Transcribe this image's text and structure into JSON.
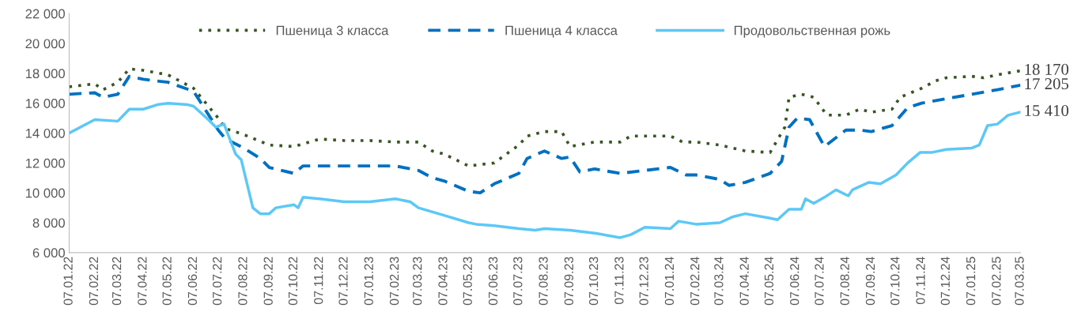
{
  "chart_data": {
    "type": "line",
    "legend": "top",
    "grid": false,
    "ylim": [
      6000,
      22000
    ],
    "yticks": [
      {
        "value": 6000,
        "label": "6 000"
      },
      {
        "value": 8000,
        "label": "8 000"
      },
      {
        "value": 10000,
        "label": "10 000"
      },
      {
        "value": 12000,
        "label": "12 000"
      },
      {
        "value": 14000,
        "label": "14 000"
      },
      {
        "value": 16000,
        "label": "16 000"
      },
      {
        "value": 18000,
        "label": "18 000"
      },
      {
        "value": 20000,
        "label": "20 000"
      },
      {
        "value": 22000,
        "label": "22 000"
      }
    ],
    "xlim": [
      "2022-01-07",
      "2025-03-07"
    ],
    "xticks": [
      {
        "value": "2022-01-07",
        "label": "07.01.22"
      },
      {
        "value": "2022-02-07",
        "label": "07.02.22"
      },
      {
        "value": "2022-03-07",
        "label": "07.03.22"
      },
      {
        "value": "2022-04-07",
        "label": "07.04.22"
      },
      {
        "value": "2022-05-07",
        "label": "07.05.22"
      },
      {
        "value": "2022-06-07",
        "label": "07.06.22"
      },
      {
        "value": "2022-07-07",
        "label": "07.07.22"
      },
      {
        "value": "2022-08-07",
        "label": "07.08.22"
      },
      {
        "value": "2022-09-07",
        "label": "07.09.22"
      },
      {
        "value": "2022-10-07",
        "label": "07.10.22"
      },
      {
        "value": "2022-11-07",
        "label": "07.11.22"
      },
      {
        "value": "2022-12-07",
        "label": "07.12.22"
      },
      {
        "value": "2023-01-07",
        "label": "07.01.23"
      },
      {
        "value": "2023-02-07",
        "label": "07.02.23"
      },
      {
        "value": "2023-03-07",
        "label": "07.03.23"
      },
      {
        "value": "2023-04-07",
        "label": "07.04.23"
      },
      {
        "value": "2023-05-07",
        "label": "07.05.23"
      },
      {
        "value": "2023-06-07",
        "label": "07.06.23"
      },
      {
        "value": "2023-07-07",
        "label": "07.07.23"
      },
      {
        "value": "2023-08-07",
        "label": "07.08.23"
      },
      {
        "value": "2023-09-07",
        "label": "07.09.23"
      },
      {
        "value": "2023-10-07",
        "label": "07.10.23"
      },
      {
        "value": "2023-11-07",
        "label": "07.11.23"
      },
      {
        "value": "2023-12-07",
        "label": "07.12.23"
      },
      {
        "value": "2024-01-07",
        "label": "07.01.24"
      },
      {
        "value": "2024-02-07",
        "label": "07.02.24"
      },
      {
        "value": "2024-03-07",
        "label": "07.03.24"
      },
      {
        "value": "2024-04-07",
        "label": "07.04.24"
      },
      {
        "value": "2024-05-07",
        "label": "07.05.24"
      },
      {
        "value": "2024-06-07",
        "label": "07.06.24"
      },
      {
        "value": "2024-07-07",
        "label": "07.07.24"
      },
      {
        "value": "2024-08-07",
        "label": "07.08.24"
      },
      {
        "value": "2024-09-07",
        "label": "07.09.24"
      },
      {
        "value": "2024-10-07",
        "label": "07.10.24"
      },
      {
        "value": "2024-11-07",
        "label": "07.11.24"
      },
      {
        "value": "2024-12-07",
        "label": "07.12.24"
      },
      {
        "value": "2025-01-07",
        "label": "07.01.25"
      },
      {
        "value": "2025-02-07",
        "label": "07.02.25"
      },
      {
        "value": "2025-03-07",
        "label": "07.03.25"
      }
    ],
    "series": [
      {
        "name": "Пшеница 3 класса",
        "color": "#375623",
        "line_style": "dotted",
        "x": [
          "2022-01-07",
          "2022-02-07",
          "2022-02-17",
          "2022-03-07",
          "2022-03-21",
          "2022-04-07",
          "2022-05-07",
          "2022-06-07",
          "2022-07-07",
          "2022-07-16",
          "2022-08-07",
          "2022-09-07",
          "2022-10-07",
          "2022-11-07",
          "2022-12-07",
          "2023-01-07",
          "2023-02-07",
          "2023-03-07",
          "2023-03-24",
          "2023-04-07",
          "2023-05-07",
          "2023-06-07",
          "2023-07-07",
          "2023-07-17",
          "2023-08-07",
          "2023-08-28",
          "2023-09-07",
          "2023-10-07",
          "2023-11-07",
          "2023-11-20",
          "2023-12-07",
          "2024-01-07",
          "2024-01-22",
          "2024-02-07",
          "2024-03-07",
          "2024-04-07",
          "2024-05-07",
          "2024-05-25",
          "2024-05-30",
          "2024-06-14",
          "2024-06-29",
          "2024-07-15",
          "2024-08-07",
          "2024-08-24",
          "2024-09-07",
          "2024-10-02",
          "2024-10-12",
          "2024-11-07",
          "2024-11-24",
          "2024-12-07",
          "2025-01-07",
          "2025-01-21",
          "2025-02-07",
          "2025-03-07"
        ],
        "values": [
          17100,
          17300,
          16900,
          17400,
          18300,
          18200,
          17900,
          17000,
          15000,
          14300,
          13900,
          13200,
          13100,
          13600,
          13500,
          13500,
          13400,
          13400,
          12800,
          12600,
          11800,
          12000,
          13200,
          13800,
          14100,
          14100,
          13100,
          13400,
          13400,
          13800,
          13800,
          13800,
          13400,
          13400,
          13200,
          12800,
          12700,
          14400,
          16400,
          16600,
          16400,
          15200,
          15200,
          15600,
          15400,
          15600,
          16400,
          17000,
          17500,
          17700,
          17800,
          17700,
          17900,
          18170
        ]
      },
      {
        "name": "Пшеница 4 класса",
        "color": "#0070c0",
        "line_style": "dashed",
        "x": [
          "2022-01-07",
          "2022-02-07",
          "2022-02-17",
          "2022-03-07",
          "2022-03-21",
          "2022-04-07",
          "2022-05-07",
          "2022-06-07",
          "2022-07-07",
          "2022-07-16",
          "2022-08-07",
          "2022-08-27",
          "2022-09-07",
          "2022-10-07",
          "2022-10-18",
          "2022-11-07",
          "2022-12-07",
          "2023-01-07",
          "2023-02-07",
          "2023-03-07",
          "2023-03-24",
          "2023-04-07",
          "2023-05-07",
          "2023-05-21",
          "2023-06-07",
          "2023-07-07",
          "2023-07-17",
          "2023-08-07",
          "2023-08-28",
          "2023-09-07",
          "2023-09-19",
          "2023-10-07",
          "2023-11-07",
          "2023-12-07",
          "2024-01-07",
          "2024-01-26",
          "2024-02-07",
          "2024-03-07",
          "2024-03-18",
          "2024-04-07",
          "2024-05-07",
          "2024-05-21",
          "2024-05-30",
          "2024-06-09",
          "2024-06-24",
          "2024-07-12",
          "2024-08-07",
          "2024-08-24",
          "2024-09-07",
          "2024-10-02",
          "2024-10-21",
          "2024-11-07",
          "2024-12-07",
          "2025-01-07",
          "2025-02-07",
          "2025-03-07"
        ],
        "values": [
          16600,
          16700,
          16400,
          16600,
          17800,
          17600,
          17400,
          16800,
          14200,
          13600,
          13000,
          12300,
          11700,
          11300,
          11800,
          11800,
          11800,
          11800,
          11800,
          11500,
          11000,
          10800,
          10100,
          10000,
          10600,
          11300,
          12300,
          12800,
          12300,
          12400,
          11400,
          11600,
          11300,
          11500,
          11700,
          11200,
          11200,
          10900,
          10500,
          10700,
          11300,
          12100,
          14400,
          15000,
          14900,
          13100,
          14200,
          14200,
          14100,
          14500,
          15700,
          16000,
          16300,
          16600,
          16900,
          17205
        ]
      },
      {
        "name": "Продовольственная рожь",
        "color": "#5bc8f5",
        "line_style": "solid",
        "x": [
          "2022-01-07",
          "2022-02-07",
          "2022-03-07",
          "2022-03-21",
          "2022-04-07",
          "2022-04-24",
          "2022-05-07",
          "2022-05-31",
          "2022-06-07",
          "2022-06-25",
          "2022-07-04",
          "2022-07-14",
          "2022-07-28",
          "2022-08-04",
          "2022-08-18",
          "2022-08-27",
          "2022-09-07",
          "2022-09-15",
          "2022-10-07",
          "2022-10-12",
          "2022-10-18",
          "2022-11-07",
          "2022-12-07",
          "2023-01-07",
          "2023-02-07",
          "2023-02-25",
          "2023-03-07",
          "2023-04-07",
          "2023-05-07",
          "2023-05-16",
          "2023-06-07",
          "2023-07-07",
          "2023-07-27",
          "2023-08-07",
          "2023-09-07",
          "2023-10-07",
          "2023-11-07",
          "2023-11-20",
          "2023-12-07",
          "2024-01-07",
          "2024-01-17",
          "2024-02-07",
          "2024-03-07",
          "2024-03-23",
          "2024-04-07",
          "2024-05-07",
          "2024-05-16",
          "2024-05-30",
          "2024-06-14",
          "2024-06-19",
          "2024-06-29",
          "2024-07-12",
          "2024-07-26",
          "2024-08-10",
          "2024-08-15",
          "2024-09-04",
          "2024-09-18",
          "2024-10-07",
          "2024-10-21",
          "2024-11-05",
          "2024-11-19",
          "2024-12-07",
          "2025-01-07",
          "2025-01-16",
          "2025-01-26",
          "2025-02-07",
          "2025-02-20",
          "2025-03-07"
        ],
        "values": [
          14000,
          14900,
          14800,
          15600,
          15600,
          15900,
          16000,
          15900,
          15800,
          14900,
          14400,
          14600,
          12600,
          12200,
          9000,
          8600,
          8600,
          9000,
          9200,
          9000,
          9700,
          9600,
          9400,
          9400,
          9600,
          9400,
          9000,
          8500,
          8000,
          7900,
          7800,
          7600,
          7500,
          7600,
          7500,
          7300,
          7000,
          7200,
          7700,
          7600,
          8100,
          7900,
          8000,
          8400,
          8600,
          8300,
          8200,
          8900,
          8900,
          9600,
          9300,
          9700,
          10200,
          9800,
          10200,
          10700,
          10600,
          11200,
          12000,
          12700,
          12700,
          12900,
          13000,
          13200,
          14500,
          14600,
          15200,
          15410
        ]
      }
    ],
    "annotations": [
      {
        "text": "18 170",
        "x": "2025-03-07",
        "y": 18170
      },
      {
        "text": "17 205",
        "x": "2025-03-07",
        "y": 17205
      },
      {
        "text": "15 410",
        "x": "2025-03-07",
        "y": 15410
      }
    ]
  }
}
